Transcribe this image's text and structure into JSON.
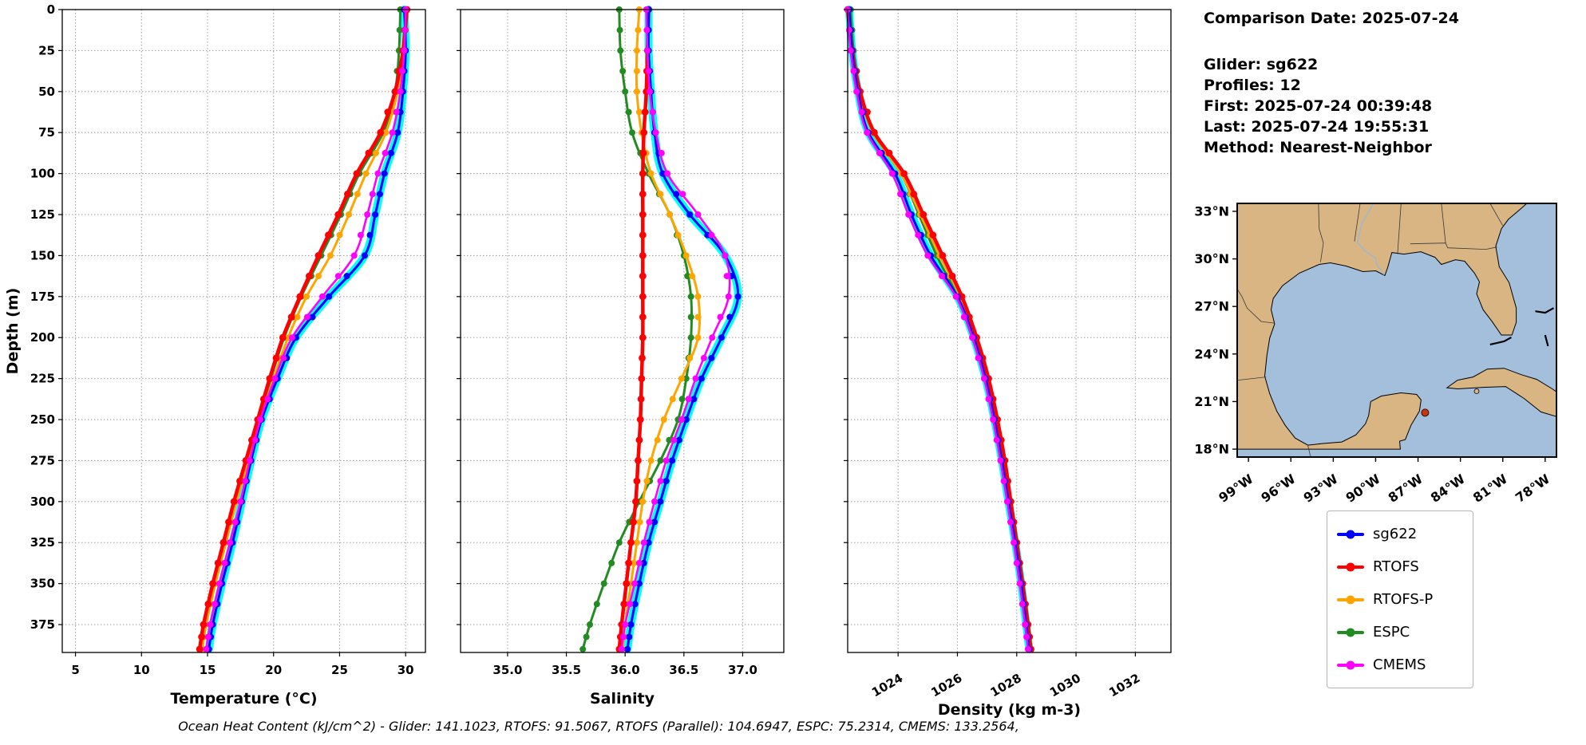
{
  "info_panel": {
    "lines": [
      "Comparison Date: 2025-07-24",
      "",
      "Glider: sg622",
      "Profiles: 12",
      "First: 2025-07-24 00:39:48",
      "Last: 2025-07-24 19:55:31",
      "Method: Nearest-Neighbor"
    ]
  },
  "footer_note": "Ocean Heat Content (kJ/cm^2) - Glider: 141.1023,  RTOFS: 91.5067,  RTOFS (Parallel): 104.6947,  ESPC: 75.2314,  CMEMS: 133.2564,",
  "legend": {
    "entries": [
      {
        "label": "sg622",
        "color": "#0000ff"
      },
      {
        "label": "RTOFS",
        "color": "#ff0000"
      },
      {
        "label": "RTOFS-P",
        "color": "#ffa500"
      },
      {
        "label": "ESPC",
        "color": "#228b22"
      },
      {
        "label": "CMEMS",
        "color": "#ff00ff"
      }
    ]
  },
  "chart_data": [
    {
      "type": "line",
      "title": "Temperature profile comparison",
      "xlabel": "Temperature (°C)",
      "ylabel": "Depth (m)",
      "grid": true,
      "xlim": [
        4,
        31.5
      ],
      "ylim": [
        392,
        0
      ],
      "xticks": [
        5,
        10,
        15,
        20,
        25,
        30
      ],
      "xtick_labels": [
        "5",
        "10",
        "15",
        "20",
        "25",
        "30"
      ],
      "yticks": [
        0,
        25,
        50,
        75,
        100,
        125,
        150,
        175,
        200,
        225,
        250,
        275,
        300,
        325,
        350,
        375
      ],
      "ytick_labels": [
        "0",
        "25",
        "50",
        "75",
        "100",
        "125",
        "150",
        "175",
        "200",
        "225",
        "250",
        "275",
        "300",
        "325",
        "350",
        "375"
      ],
      "depths": [
        0,
        25,
        50,
        75,
        100,
        125,
        150,
        175,
        200,
        225,
        250,
        275,
        300,
        325,
        350,
        375,
        390
      ],
      "series": [
        {
          "name": "sg622",
          "color": "#0000ff",
          "envelope": "#00ffff",
          "values": [
            29.9,
            30.0,
            29.8,
            29.4,
            28.4,
            27.7,
            26.9,
            24.2,
            21.7,
            20.3,
            19.1,
            18.3,
            17.6,
            16.9,
            16.1,
            15.4,
            15.1
          ]
        },
        {
          "name": "RTOFS",
          "color": "#ff0000",
          "values": [
            30.1,
            29.8,
            29.2,
            28.1,
            26.3,
            24.9,
            23.4,
            22.0,
            20.7,
            19.7,
            18.8,
            17.9,
            17.0,
            16.2,
            15.4,
            14.7,
            14.4
          ]
        },
        {
          "name": "RTOFS-P",
          "color": "#ffa500",
          "values": [
            30.1,
            29.9,
            29.4,
            28.5,
            27.0,
            25.7,
            24.3,
            22.5,
            21.1,
            20.0,
            19.0,
            18.1,
            17.2,
            16.4,
            15.6,
            14.9,
            14.6
          ]
        },
        {
          "name": "ESPC",
          "color": "#228b22",
          "values": [
            29.6,
            29.5,
            29.2,
            28.3,
            26.5,
            25.1,
            23.6,
            22.1,
            20.8,
            19.8,
            18.9,
            18.0,
            17.1,
            16.3,
            15.5,
            14.8,
            14.5
          ]
        },
        {
          "name": "CMEMS",
          "color": "#ff00ff",
          "values": [
            30.0,
            29.9,
            29.6,
            29.0,
            27.9,
            27.1,
            26.1,
            23.7,
            21.4,
            20.1,
            19.0,
            18.2,
            17.5,
            16.7,
            15.9,
            15.2,
            14.9
          ]
        }
      ]
    },
    {
      "type": "line",
      "title": "Salinity profile comparison",
      "xlabel": "Salinity",
      "ylabel": "",
      "grid": true,
      "xlim": [
        34.6,
        37.35
      ],
      "ylim": [
        392,
        0
      ],
      "xticks": [
        35.0,
        35.5,
        36.0,
        36.5,
        37.0
      ],
      "xtick_labels": [
        "35.0",
        "35.5",
        "36.0",
        "36.5",
        "37.0"
      ],
      "yticks": [
        0,
        25,
        50,
        75,
        100,
        125,
        150,
        175,
        200,
        225,
        250,
        275,
        300,
        325,
        350,
        375
      ],
      "ytick_labels": [],
      "depths": [
        0,
        25,
        50,
        75,
        100,
        125,
        150,
        175,
        200,
        225,
        250,
        275,
        300,
        325,
        350,
        375,
        390
      ],
      "series": [
        {
          "name": "sg622",
          "color": "#0000ff",
          "envelope": "#00ffff",
          "values": [
            36.2,
            36.2,
            36.22,
            36.25,
            36.32,
            36.55,
            36.85,
            36.96,
            36.82,
            36.65,
            36.52,
            36.4,
            36.3,
            36.2,
            36.12,
            36.05,
            36.02
          ]
        },
        {
          "name": "RTOFS",
          "color": "#ff0000",
          "values": [
            36.2,
            36.19,
            36.18,
            36.16,
            36.15,
            36.15,
            36.15,
            36.15,
            36.15,
            36.14,
            36.13,
            36.11,
            36.09,
            36.05,
            36.01,
            35.97,
            35.95
          ]
        },
        {
          "name": "RTOFS-P",
          "color": "#ffa500",
          "values": [
            36.12,
            36.1,
            36.1,
            36.14,
            36.22,
            36.38,
            36.52,
            36.62,
            36.62,
            36.48,
            36.33,
            36.22,
            36.15,
            36.1,
            36.05,
            36.0,
            35.98
          ]
        },
        {
          "name": "ESPC",
          "color": "#228b22",
          "values": [
            35.95,
            35.96,
            36.0,
            36.06,
            36.2,
            36.38,
            36.5,
            36.56,
            36.56,
            36.52,
            36.45,
            36.3,
            36.12,
            35.95,
            35.82,
            35.7,
            35.64
          ]
        },
        {
          "name": "CMEMS",
          "color": "#ff00ff",
          "values": [
            36.18,
            36.19,
            36.21,
            36.26,
            36.36,
            36.62,
            36.85,
            36.88,
            36.74,
            36.6,
            36.48,
            36.35,
            36.25,
            36.16,
            36.08,
            36.0,
            35.97
          ]
        }
      ]
    },
    {
      "type": "line",
      "title": "Density profile comparison",
      "xlabel": "Density (kg m-3)",
      "ylabel": "",
      "grid": true,
      "xlim": [
        1022.3,
        1033.2
      ],
      "ylim": [
        392,
        0
      ],
      "xticks": [
        1024,
        1026,
        1028,
        1030,
        1032
      ],
      "xtick_labels": [
        "1024",
        "1026",
        "1028",
        "1030",
        "1032"
      ],
      "xtick_rotation": 30,
      "yticks": [
        0,
        25,
        50,
        75,
        100,
        125,
        150,
        175,
        200,
        225,
        250,
        275,
        300,
        325,
        350,
        375
      ],
      "ytick_labels": [],
      "depths": [
        0,
        25,
        50,
        75,
        100,
        125,
        150,
        175,
        200,
        225,
        250,
        275,
        300,
        325,
        350,
        375,
        390
      ],
      "series": [
        {
          "name": "sg622",
          "color": "#0000ff",
          "envelope": "#00ffff",
          "values": [
            1022.35,
            1022.45,
            1022.65,
            1023.0,
            1023.9,
            1024.45,
            1025.1,
            1026.0,
            1026.55,
            1026.95,
            1027.25,
            1027.5,
            1027.72,
            1027.95,
            1028.15,
            1028.32,
            1028.42
          ]
        },
        {
          "name": "RTOFS",
          "color": "#ff0000",
          "values": [
            1022.3,
            1022.45,
            1022.72,
            1023.2,
            1024.2,
            1024.85,
            1025.5,
            1026.15,
            1026.65,
            1027.05,
            1027.35,
            1027.6,
            1027.8,
            1028.0,
            1028.2,
            1028.38,
            1028.48
          ]
        },
        {
          "name": "RTOFS-P",
          "color": "#ffa500",
          "values": [
            1022.3,
            1022.45,
            1022.7,
            1023.15,
            1024.1,
            1024.75,
            1025.4,
            1026.1,
            1026.6,
            1027.0,
            1027.3,
            1027.55,
            1027.78,
            1027.98,
            1028.18,
            1028.36,
            1028.46
          ]
        },
        {
          "name": "ESPC",
          "color": "#228b22",
          "values": [
            1022.4,
            1022.5,
            1022.72,
            1023.15,
            1024.1,
            1024.7,
            1025.3,
            1026.0,
            1026.5,
            1026.95,
            1027.25,
            1027.5,
            1027.7,
            1027.93,
            1028.13,
            1028.3,
            1028.4
          ]
        },
        {
          "name": "CMEMS",
          "color": "#ff00ff",
          "values": [
            1022.3,
            1022.4,
            1022.6,
            1022.95,
            1023.8,
            1024.35,
            1025.0,
            1025.95,
            1026.5,
            1026.9,
            1027.2,
            1027.45,
            1027.68,
            1027.9,
            1028.1,
            1028.28,
            1028.38
          ]
        }
      ]
    }
  ],
  "map": {
    "lat_ticks": [
      "33°N",
      "30°N",
      "27°N",
      "24°N",
      "21°N",
      "18°N"
    ],
    "lat_values": [
      33,
      30,
      27,
      24,
      21,
      18
    ],
    "lon_ticks": [
      "99°W",
      "96°W",
      "93°W",
      "90°W",
      "87°W",
      "84°W",
      "81°W",
      "78°W"
    ],
    "lon_values": [
      99,
      96,
      93,
      90,
      87,
      84,
      81,
      78
    ],
    "lon_range": [
      99.8,
      77.2
    ],
    "lat_range": [
      33.5,
      17.5
    ],
    "land_color": "#d8b583",
    "ocean_color": "#a3bfdc",
    "marker": {
      "lon_w": 86.5,
      "lat_n": 20.3,
      "color": "#cc3311"
    }
  }
}
